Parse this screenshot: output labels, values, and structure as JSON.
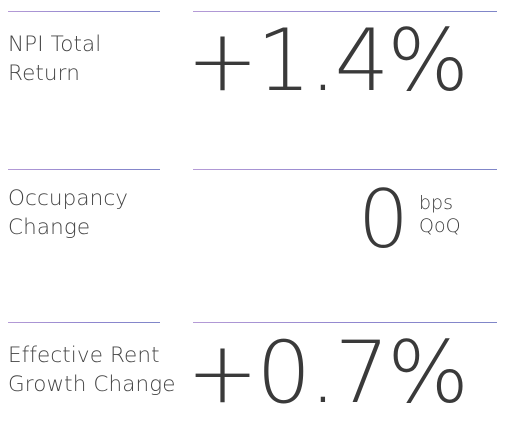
{
  "metrics": [
    {
      "label_line1": "NPI Total",
      "label_line2": "Return",
      "value": "+1.4%"
    },
    {
      "label_line1": "Occupancy",
      "label_line2": "Change",
      "value": "0",
      "unit_line1": "bps",
      "unit_line2": "QoQ"
    },
    {
      "label_line1": "Effective Rent",
      "label_line2": "Growth Change",
      "value": "+0.7%"
    }
  ],
  "colors": {
    "rule_gradient_start": "#b59bd6",
    "rule_gradient_end": "#7f86c8",
    "text": "#3a3a3a"
  }
}
